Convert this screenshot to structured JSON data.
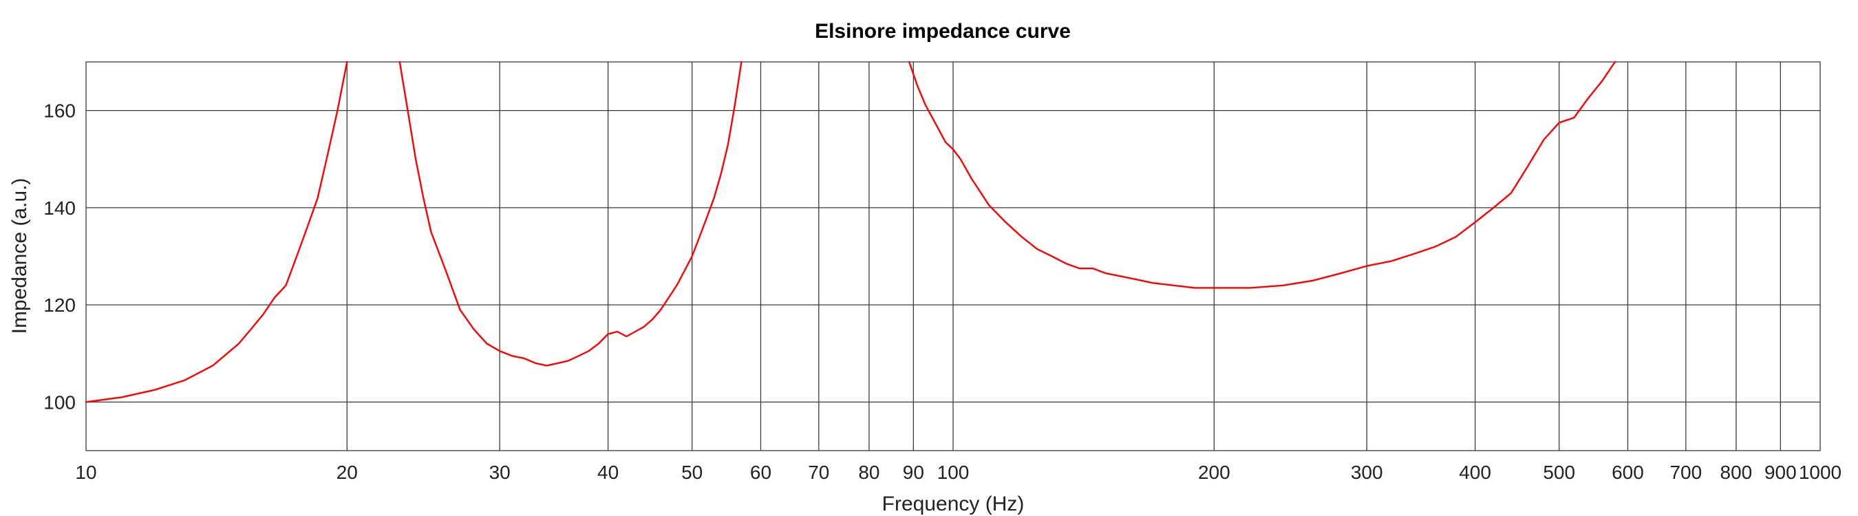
{
  "chart_data": {
    "type": "line",
    "title": "Elsinore impedance curve",
    "xlabel": "Frequency (Hz)",
    "ylabel": "Impedance (a.u.)",
    "xscale": "log",
    "xlim": [
      10,
      1000
    ],
    "ylim": [
      90,
      170
    ],
    "grid": true,
    "x_ticks": [
      10,
      20,
      30,
      40,
      50,
      60,
      70,
      80,
      90,
      100,
      200,
      300,
      400,
      500,
      600,
      700,
      800,
      900,
      1000
    ],
    "y_ticks": [
      100,
      120,
      140,
      160
    ],
    "colors": {
      "series": "#ff0000",
      "grid": "#3a3a3a",
      "text": "#222222"
    },
    "series": [
      {
        "color": "#ff0000",
        "segments": [
          [
            [
              10,
              100
            ],
            [
              11,
              101
            ],
            [
              12,
              102.5
            ],
            [
              13,
              104.5
            ],
            [
              14,
              107.5
            ],
            [
              15,
              112
            ],
            [
              15.5,
              115
            ],
            [
              16,
              118
            ],
            [
              16.5,
              121.5
            ],
            [
              17,
              124
            ],
            [
              17.5,
              130
            ],
            [
              18,
              136
            ],
            [
              18.5,
              142
            ],
            [
              19,
              151
            ],
            [
              19.5,
              160
            ],
            [
              20,
              170
            ]
          ],
          [
            [
              23,
              170
            ],
            [
              23.5,
              160
            ],
            [
              24,
              150
            ],
            [
              24.5,
              142
            ],
            [
              25,
              135
            ],
            [
              26,
              127
            ],
            [
              27,
              119
            ],
            [
              28,
              115
            ],
            [
              29,
              112
            ],
            [
              30,
              110.5
            ],
            [
              31,
              109.5
            ],
            [
              32,
              109
            ],
            [
              33,
              108
            ],
            [
              34,
              107.5
            ],
            [
              35,
              108
            ],
            [
              36,
              108.5
            ],
            [
              37,
              109.5
            ],
            [
              38,
              110.5
            ],
            [
              39,
              112
            ],
            [
              40,
              114
            ],
            [
              41,
              114.5
            ],
            [
              42,
              113.5
            ],
            [
              43,
              114.5
            ],
            [
              44,
              115.5
            ],
            [
              45,
              117
            ],
            [
              46,
              119
            ],
            [
              47,
              121.5
            ],
            [
              48,
              124
            ],
            [
              49,
              127
            ],
            [
              50,
              130
            ],
            [
              51,
              134
            ],
            [
              52,
              138
            ],
            [
              53,
              142
            ],
            [
              54,
              147
            ],
            [
              55,
              153
            ],
            [
              56,
              161
            ],
            [
              57,
              170
            ]
          ],
          [
            [
              89,
              170
            ],
            [
              91,
              165
            ],
            [
              93,
              161
            ],
            [
              95,
              158
            ],
            [
              97,
              155
            ],
            [
              98,
              153.5
            ],
            [
              100,
              152
            ],
            [
              102,
              150
            ],
            [
              105,
              146
            ],
            [
              110,
              140.5
            ],
            [
              115,
              137
            ],
            [
              120,
              134
            ],
            [
              125,
              131.5
            ],
            [
              130,
              130
            ],
            [
              135,
              128.5
            ],
            [
              140,
              127.5
            ],
            [
              145,
              127.5
            ],
            [
              150,
              126.5
            ],
            [
              160,
              125.5
            ],
            [
              170,
              124.5
            ],
            [
              180,
              124
            ],
            [
              190,
              123.5
            ],
            [
              200,
              123.5
            ],
            [
              220,
              123.5
            ],
            [
              240,
              124
            ],
            [
              260,
              125
            ],
            [
              280,
              126.5
            ],
            [
              300,
              128
            ],
            [
              320,
              129
            ],
            [
              340,
              130.5
            ],
            [
              360,
              132
            ],
            [
              380,
              134
            ],
            [
              400,
              137
            ],
            [
              420,
              140
            ],
            [
              440,
              143
            ],
            [
              460,
              148.5
            ],
            [
              480,
              154
            ],
            [
              500,
              157.5
            ],
            [
              520,
              158.5
            ],
            [
              540,
              162.5
            ],
            [
              560,
              166
            ],
            [
              580,
              170
            ]
          ]
        ]
      }
    ]
  }
}
